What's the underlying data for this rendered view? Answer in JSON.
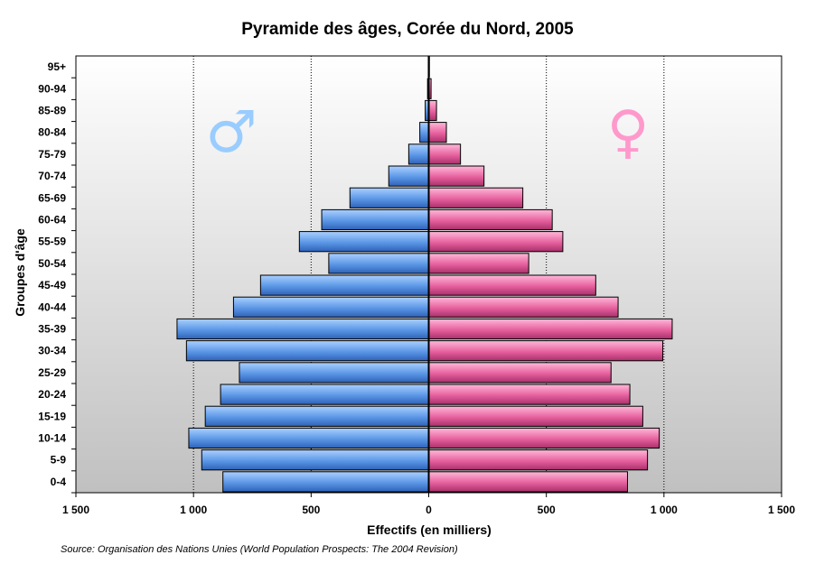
{
  "chart_data": {
    "type": "bar",
    "orientation": "horizontal-pyramid",
    "title": "Pyramide des âges, Corée du Nord, 2005",
    "xlabel": "Effectifs (en milliers)",
    "ylabel": "Groupes d'âge",
    "xlim": [
      -1500,
      1500
    ],
    "xticks": [
      -1500,
      -1000,
      -500,
      0,
      500,
      1000,
      1500
    ],
    "xtick_labels": [
      "1 500",
      "1 000",
      "500",
      "0",
      "500",
      "1 000",
      "1 500"
    ],
    "categories": [
      "0-4",
      "5-9",
      "10-14",
      "15-19",
      "20-24",
      "25-29",
      "30-34",
      "35-39",
      "40-44",
      "45-49",
      "50-54",
      "55-59",
      "60-64",
      "65-69",
      "70-74",
      "75-79",
      "80-84",
      "85-89",
      "90-94",
      "95+"
    ],
    "series": [
      {
        "symbol": "♂",
        "side": "left",
        "color": "#5b97e6",
        "values": [
          875,
          965,
          1020,
          950,
          885,
          805,
          1030,
          1070,
          830,
          715,
          425,
          550,
          455,
          335,
          170,
          85,
          38,
          15,
          5,
          2
        ]
      },
      {
        "symbol": "♀",
        "side": "right",
        "color": "#e6609e",
        "values": [
          845,
          930,
          980,
          910,
          855,
          775,
          995,
          1035,
          805,
          710,
          425,
          570,
          525,
          400,
          235,
          135,
          75,
          33,
          10,
          3
        ]
      }
    ],
    "grid": "vertical dotted at 500 intervals",
    "background": "gradient white to grey",
    "source": "Source: Organisation des Nations Unies (World Population Prospects: The 2004 Revision)"
  },
  "colors": {
    "male_symbol": "#99ccff",
    "female_symbol": "#ff99cc"
  }
}
